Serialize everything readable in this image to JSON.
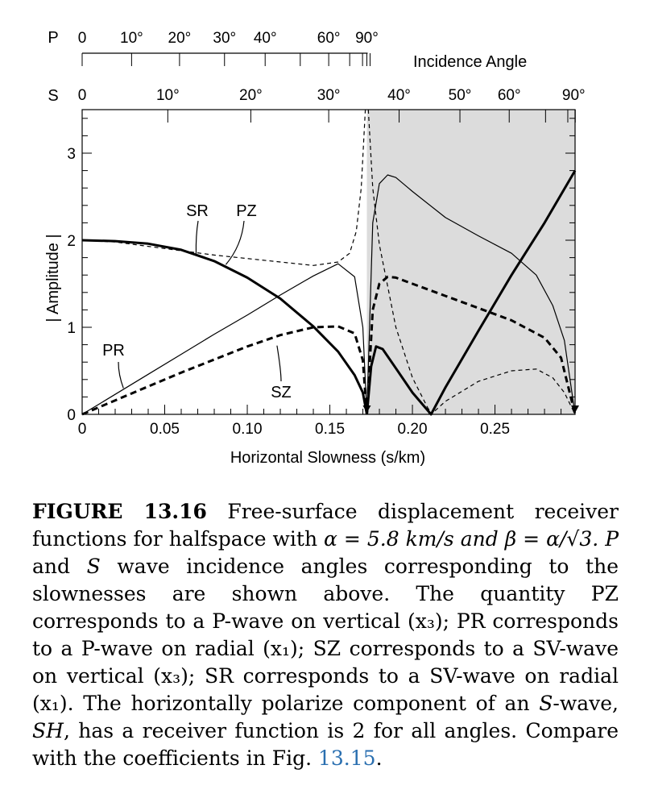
{
  "chart_data": {
    "type": "line",
    "xlabel": "Horizontal Slowness (s/km)",
    "ylabel": "| Amplitude |",
    "xlim": [
      0,
      0.2985
    ],
    "ylim": [
      0,
      3.5
    ],
    "x_ticks": [
      "0",
      "0.05",
      "0.10",
      "0.15",
      "0.20",
      "0.25"
    ],
    "y_ticks": [
      "0",
      "1",
      "2",
      "3"
    ],
    "shaded_region_x": [
      0.1724,
      0.2985
    ],
    "top_axes": {
      "p_axis_label": "P",
      "p_ticks": [
        "0",
        "10°",
        "20°",
        "30°",
        "40°",
        "60°",
        "90°"
      ],
      "p_tick_slowness": [
        0,
        0.02994,
        0.05897,
        0.08621,
        0.11082,
        0.14931,
        0.17241
      ],
      "s_axis_label": "S",
      "s_ticks": [
        "0",
        "10°",
        "20°",
        "30°",
        "40°",
        "50°",
        "60°",
        "90°"
      ],
      "s_tick_slowness": [
        0,
        0.05186,
        0.10214,
        0.14931,
        0.19195,
        0.22877,
        0.25862,
        0.29863
      ],
      "incidence_label": "Incidence Angle"
    },
    "series": [
      {
        "name": "PZ",
        "style": "thick-solid",
        "x": [
          0,
          0.02,
          0.04,
          0.06,
          0.08,
          0.1,
          0.12,
          0.14,
          0.155,
          0.165,
          0.17,
          0.1724
        ],
        "y": [
          2.0,
          1.99,
          1.96,
          1.89,
          1.76,
          1.57,
          1.33,
          1.01,
          0.72,
          0.45,
          0.25,
          0.0
        ]
      },
      {
        "name": "PR",
        "style": "thin-solid",
        "x": [
          0,
          0.02,
          0.04,
          0.06,
          0.08,
          0.1,
          0.12,
          0.14,
          0.155,
          0.165,
          0.17,
          0.1724
        ],
        "y": [
          0,
          0.23,
          0.46,
          0.69,
          0.92,
          1.14,
          1.37,
          1.59,
          1.73,
          1.58,
          1.0,
          0.0
        ]
      },
      {
        "name": "SR",
        "style": "thin-dashed",
        "x": [
          0,
          0.02,
          0.04,
          0.06,
          0.08,
          0.1,
          0.12,
          0.14,
          0.155,
          0.162,
          0.166,
          0.169,
          0.1715
        ],
        "y": [
          2.0,
          1.98,
          1.93,
          1.88,
          1.83,
          1.79,
          1.75,
          1.71,
          1.75,
          1.85,
          2.1,
          2.6,
          3.5
        ]
      },
      {
        "name": "SZ",
        "style": "thick-dashed",
        "x": [
          0,
          0.02,
          0.04,
          0.06,
          0.08,
          0.1,
          0.12,
          0.14,
          0.155,
          0.165,
          0.17,
          0.1724
        ],
        "y": [
          0,
          0.16,
          0.32,
          0.48,
          0.63,
          0.78,
          0.91,
          1.0,
          1.01,
          0.93,
          0.62,
          0.0
        ]
      },
      {
        "name": "",
        "style": "thin-solid",
        "x": [
          0.1724,
          0.176,
          0.18,
          0.185,
          0.19,
          0.2,
          0.22,
          0.24,
          0.26,
          0.275,
          0.285,
          0.292,
          0.2985
        ],
        "y": [
          0.0,
          2.2,
          2.65,
          2.75,
          2.72,
          2.56,
          2.26,
          2.05,
          1.85,
          1.6,
          1.25,
          0.85,
          0.0
        ]
      },
      {
        "name": "",
        "style": "thin-dashed",
        "x": [
          0.1733,
          0.176,
          0.18,
          0.19,
          0.2,
          0.2113,
          0.22,
          0.24,
          0.26,
          0.275,
          0.285,
          0.292,
          0.2985
        ],
        "y": [
          3.5,
          2.6,
          1.95,
          1.0,
          0.42,
          0.0,
          0.15,
          0.38,
          0.5,
          0.52,
          0.42,
          0.25,
          0.0
        ]
      },
      {
        "name": "",
        "style": "thick-solid",
        "x": [
          0.1724,
          0.175,
          0.178,
          0.182,
          0.19,
          0.2,
          0.2113,
          0.22,
          0.24,
          0.26,
          0.28,
          0.2985
        ],
        "y": [
          0.0,
          0.55,
          0.78,
          0.75,
          0.53,
          0.25,
          0.0,
          0.31,
          0.96,
          1.6,
          2.2,
          2.8
        ]
      },
      {
        "name": "",
        "style": "thick-dashed",
        "x": [
          0.1724,
          0.176,
          0.18,
          0.185,
          0.19,
          0.2,
          0.22,
          0.24,
          0.26,
          0.28,
          0.29,
          0.2985
        ],
        "y": [
          0.0,
          1.2,
          1.5,
          1.58,
          1.57,
          1.5,
          1.36,
          1.22,
          1.08,
          0.88,
          0.65,
          0.0
        ]
      }
    ],
    "annotations": [
      {
        "text": "SR",
        "at_x": 0.069,
        "at_y": 1.84
      },
      {
        "text": "PZ",
        "at_x": 0.087,
        "at_y": 1.72
      },
      {
        "text": "PR",
        "at_x": 0.025,
        "at_y": 0.3
      },
      {
        "text": "SZ",
        "at_x": 0.118,
        "at_y": 0.79
      }
    ]
  },
  "caption": {
    "label": "FIGURE 13.16",
    "text_1": "Free-surface displacement receiver functions for halfspace with",
    "math_1": "α = 5.8 km/s and β = α/√3.",
    "p_italic": "P",
    "text_and": "and",
    "s_italic": "S",
    "text_2": "wave incidence angles corresponding to the slownesses are shown above. The quantity PZ corresponds to a P-wave on vertical (x₃); PR corresponds to a P-wave on radial (x₁); SZ corresponds to a SV-wave on vertical (x₃); SR corresponds to a SV-wave on radial (x₁). The horizontally polarize component of an",
    "s_wave_italic": "S",
    "text_3": "-wave,",
    "sh_italic": "SH",
    "text_4": ", has a receiver function is 2 for all angles. Compare with the coefficients in Fig.",
    "link": "13.15",
    "text_end": "."
  }
}
